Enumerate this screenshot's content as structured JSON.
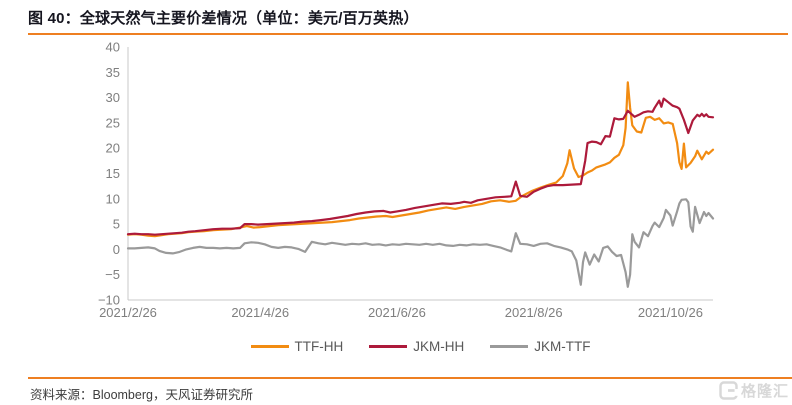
{
  "header": {
    "title": "图 40：全球天然气主要价差情况（单位：美元/百万英热）"
  },
  "footer": {
    "source": "资料来源：Bloomberg，天风证券研究所",
    "watermark": "格隆汇"
  },
  "colors": {
    "accent_orange": "#ee7f21",
    "title_text": "#15151f",
    "axis_text": "#7f7f7f",
    "axis_line": "#c8c8c8",
    "footer_text": "#3d3d3d",
    "watermark_gray": "#d8d8d8",
    "legend_text": "#595959"
  },
  "chart_data": {
    "type": "line",
    "title": "全球天然气主要价差情况",
    "unit": "美元/百万英热",
    "grid": false,
    "legend_position": "bottom",
    "y_axis": {
      "min": -10,
      "max": 40,
      "step": 5,
      "tick_labels": [
        "40",
        "35",
        "30",
        "25",
        "20",
        "15",
        "10",
        "5",
        "0",
        "−5",
        "−10"
      ]
    },
    "x_axis": {
      "range_days": [
        0,
        261
      ],
      "tick_days": [
        0,
        59,
        120,
        181,
        242
      ],
      "tick_labels": [
        "2021/2/26",
        "2021/4/26",
        "2021/6/26",
        "2021/8/26",
        "2021/10/26"
      ]
    },
    "series": [
      {
        "name": "TTF-HH",
        "color": "#f28c12",
        "points": [
          [
            0,
            2.9
          ],
          [
            3,
            3.0
          ],
          [
            6,
            2.9
          ],
          [
            9,
            2.7
          ],
          [
            12,
            2.6
          ],
          [
            15,
            2.8
          ],
          [
            18,
            3.0
          ],
          [
            21,
            3.1
          ],
          [
            24,
            3.2
          ],
          [
            27,
            3.4
          ],
          [
            30,
            3.5
          ],
          [
            34,
            3.6
          ],
          [
            38,
            3.8
          ],
          [
            42,
            3.9
          ],
          [
            46,
            4.0
          ],
          [
            50,
            4.3
          ],
          [
            53,
            4.6
          ],
          [
            56,
            4.3
          ],
          [
            59,
            4.4
          ],
          [
            63,
            4.6
          ],
          [
            67,
            4.8
          ],
          [
            71,
            4.9
          ],
          [
            75,
            5.0
          ],
          [
            79,
            5.1
          ],
          [
            83,
            5.2
          ],
          [
            87,
            5.3
          ],
          [
            91,
            5.4
          ],
          [
            95,
            5.6
          ],
          [
            99,
            5.8
          ],
          [
            103,
            6.1
          ],
          [
            107,
            6.3
          ],
          [
            111,
            6.5
          ],
          [
            115,
            6.6
          ],
          [
            118,
            6.4
          ],
          [
            122,
            6.7
          ],
          [
            126,
            7.0
          ],
          [
            130,
            7.3
          ],
          [
            134,
            7.7
          ],
          [
            138,
            8.0
          ],
          [
            142,
            8.3
          ],
          [
            146,
            8.0
          ],
          [
            150,
            8.4
          ],
          [
            154,
            8.7
          ],
          [
            158,
            9.0
          ],
          [
            162,
            9.5
          ],
          [
            166,
            9.7
          ],
          [
            170,
            9.4
          ],
          [
            173,
            9.6
          ],
          [
            176,
            10.6
          ],
          [
            180,
            11.5
          ],
          [
            184,
            12.2
          ],
          [
            188,
            12.8
          ],
          [
            191,
            13.2
          ],
          [
            194,
            14.5
          ],
          [
            196,
            17.0
          ],
          [
            197,
            19.6
          ],
          [
            199,
            16.0
          ],
          [
            201,
            14.3
          ],
          [
            203,
            14.6
          ],
          [
            205,
            15.2
          ],
          [
            207,
            15.6
          ],
          [
            209,
            16.2
          ],
          [
            211,
            16.5
          ],
          [
            213,
            16.8
          ],
          [
            215,
            17.2
          ],
          [
            217,
            18.1
          ],
          [
            219,
            18.7
          ],
          [
            221,
            20.6
          ],
          [
            222,
            24.0
          ],
          [
            223,
            33.0
          ],
          [
            224,
            28.0
          ],
          [
            225,
            24.5
          ],
          [
            227,
            23.3
          ],
          [
            229,
            23.1
          ],
          [
            231,
            26.0
          ],
          [
            233,
            26.2
          ],
          [
            235,
            25.6
          ],
          [
            237,
            25.9
          ],
          [
            239,
            24.9
          ],
          [
            241,
            25.1
          ],
          [
            243,
            24.8
          ],
          [
            245,
            21.0
          ],
          [
            246,
            17.2
          ],
          [
            247,
            15.9
          ],
          [
            248,
            20.9
          ],
          [
            249,
            16.2
          ],
          [
            251,
            17.1
          ],
          [
            253,
            18.4
          ],
          [
            254,
            19.5
          ],
          [
            256,
            17.8
          ],
          [
            258,
            19.3
          ],
          [
            259,
            18.9
          ],
          [
            261,
            19.7
          ]
        ]
      },
      {
        "name": "JKM-HH",
        "color": "#ad1a3b",
        "points": [
          [
            0,
            3.0
          ],
          [
            3,
            3.1
          ],
          [
            6,
            3.0
          ],
          [
            9,
            3.0
          ],
          [
            12,
            2.9
          ],
          [
            15,
            3.0
          ],
          [
            18,
            3.1
          ],
          [
            21,
            3.2
          ],
          [
            24,
            3.3
          ],
          [
            27,
            3.5
          ],
          [
            30,
            3.6
          ],
          [
            34,
            3.8
          ],
          [
            38,
            4.0
          ],
          [
            42,
            4.1
          ],
          [
            46,
            4.1
          ],
          [
            50,
            4.2
          ],
          [
            52,
            5.0
          ],
          [
            55,
            5.0
          ],
          [
            58,
            4.9
          ],
          [
            62,
            5.0
          ],
          [
            66,
            5.1
          ],
          [
            70,
            5.2
          ],
          [
            74,
            5.3
          ],
          [
            78,
            5.5
          ],
          [
            82,
            5.6
          ],
          [
            86,
            5.8
          ],
          [
            90,
            6.0
          ],
          [
            94,
            6.3
          ],
          [
            98,
            6.6
          ],
          [
            102,
            7.0
          ],
          [
            106,
            7.3
          ],
          [
            110,
            7.5
          ],
          [
            114,
            7.6
          ],
          [
            117,
            7.3
          ],
          [
            120,
            7.5
          ],
          [
            124,
            7.8
          ],
          [
            128,
            8.2
          ],
          [
            132,
            8.5
          ],
          [
            136,
            8.8
          ],
          [
            140,
            9.1
          ],
          [
            144,
            9.0
          ],
          [
            148,
            9.2
          ],
          [
            150,
            9.4
          ],
          [
            153,
            9.2
          ],
          [
            156,
            9.7
          ],
          [
            160,
            10.0
          ],
          [
            164,
            10.3
          ],
          [
            168,
            10.4
          ],
          [
            171,
            10.5
          ],
          [
            173,
            13.4
          ],
          [
            175,
            10.6
          ],
          [
            178,
            10.4
          ],
          [
            181,
            11.4
          ],
          [
            184,
            12.0
          ],
          [
            187,
            12.5
          ],
          [
            190,
            12.7
          ],
          [
            194,
            12.7
          ],
          [
            198,
            12.8
          ],
          [
            202,
            12.9
          ],
          [
            204,
            17.5
          ],
          [
            205,
            21.0
          ],
          [
            207,
            21.3
          ],
          [
            209,
            21.2
          ],
          [
            211,
            20.8
          ],
          [
            213,
            22.4
          ],
          [
            215,
            22.3
          ],
          [
            217,
            25.9
          ],
          [
            219,
            25.7
          ],
          [
            221,
            25.8
          ],
          [
            223,
            27.4
          ],
          [
            225,
            26.6
          ],
          [
            226,
            26.2
          ],
          [
            228,
            26.6
          ],
          [
            230,
            27.1
          ],
          [
            232,
            27.3
          ],
          [
            234,
            27.2
          ],
          [
            235,
            28.0
          ],
          [
            237,
            29.4
          ],
          [
            238,
            28.2
          ],
          [
            239,
            29.8
          ],
          [
            241,
            29.1
          ],
          [
            243,
            28.4
          ],
          [
            245,
            28.1
          ],
          [
            246,
            27.8
          ],
          [
            248,
            25.6
          ],
          [
            250,
            23.0
          ],
          [
            252,
            25.5
          ],
          [
            254,
            26.6
          ],
          [
            255,
            26.3
          ],
          [
            256,
            26.8
          ],
          [
            257,
            26.3
          ],
          [
            258,
            26.7
          ],
          [
            259,
            26.2
          ],
          [
            261,
            26.1
          ]
        ]
      },
      {
        "name": "JKM-TTF",
        "color": "#9a9a9a",
        "points": [
          [
            0,
            0.2
          ],
          [
            3,
            0.2
          ],
          [
            6,
            0.3
          ],
          [
            9,
            0.4
          ],
          [
            12,
            0.2
          ],
          [
            14,
            -0.3
          ],
          [
            17,
            -0.7
          ],
          [
            20,
            -0.8
          ],
          [
            23,
            -0.5
          ],
          [
            26,
            0.0
          ],
          [
            29,
            0.3
          ],
          [
            32,
            0.5
          ],
          [
            35,
            0.3
          ],
          [
            38,
            0.3
          ],
          [
            41,
            0.2
          ],
          [
            44,
            0.3
          ],
          [
            47,
            0.2
          ],
          [
            50,
            0.3
          ],
          [
            52,
            1.2
          ],
          [
            55,
            1.4
          ],
          [
            58,
            1.3
          ],
          [
            61,
            1.0
          ],
          [
            64,
            0.5
          ],
          [
            67,
            0.3
          ],
          [
            70,
            0.5
          ],
          [
            73,
            0.4
          ],
          [
            76,
            0.1
          ],
          [
            79,
            -0.5
          ],
          [
            82,
            1.5
          ],
          [
            85,
            1.2
          ],
          [
            88,
            1.0
          ],
          [
            91,
            1.3
          ],
          [
            94,
            1.1
          ],
          [
            97,
            0.9
          ],
          [
            100,
            1.1
          ],
          [
            103,
            1.0
          ],
          [
            106,
            1.2
          ],
          [
            109,
            0.9
          ],
          [
            112,
            1.0
          ],
          [
            115,
            0.8
          ],
          [
            118,
            1.0
          ],
          [
            121,
            0.9
          ],
          [
            124,
            1.1
          ],
          [
            127,
            1.0
          ],
          [
            130,
            0.9
          ],
          [
            133,
            1.1
          ],
          [
            136,
            0.9
          ],
          [
            139,
            1.1
          ],
          [
            142,
            0.8
          ],
          [
            145,
            0.7
          ],
          [
            148,
            0.9
          ],
          [
            151,
            0.8
          ],
          [
            154,
            1.0
          ],
          [
            157,
            0.9
          ],
          [
            160,
            1.0
          ],
          [
            163,
            0.7
          ],
          [
            166,
            0.4
          ],
          [
            169,
            -0.1
          ],
          [
            171,
            -0.4
          ],
          [
            173,
            3.2
          ],
          [
            175,
            1.1
          ],
          [
            178,
            1.0
          ],
          [
            181,
            0.7
          ],
          [
            184,
            1.1
          ],
          [
            187,
            1.2
          ],
          [
            190,
            0.7
          ],
          [
            193,
            0.4
          ],
          [
            196,
            0.0
          ],
          [
            198,
            -0.4
          ],
          [
            200,
            -2.2
          ],
          [
            202,
            -7.0
          ],
          [
            203,
            -2.5
          ],
          [
            204,
            -0.6
          ],
          [
            206,
            -3.0
          ],
          [
            208,
            -1.0
          ],
          [
            210,
            -2.4
          ],
          [
            212,
            0.3
          ],
          [
            214,
            0.6
          ],
          [
            216,
            -0.5
          ],
          [
            218,
            -1.3
          ],
          [
            220,
            -1.1
          ],
          [
            222,
            -4.5
          ],
          [
            223,
            -7.4
          ],
          [
            224,
            -5.0
          ],
          [
            225,
            3.0
          ],
          [
            226,
            1.5
          ],
          [
            228,
            0.4
          ],
          [
            230,
            3.4
          ],
          [
            232,
            2.6
          ],
          [
            234,
            4.6
          ],
          [
            235,
            5.3
          ],
          [
            237,
            4.4
          ],
          [
            239,
            6.2
          ],
          [
            240,
            7.8
          ],
          [
            242,
            6.7
          ],
          [
            243,
            4.7
          ],
          [
            245,
            7.5
          ],
          [
            246,
            9.1
          ],
          [
            247,
            9.8
          ],
          [
            249,
            9.9
          ],
          [
            250,
            9.3
          ],
          [
            251,
            4.5
          ],
          [
            252,
            3.5
          ],
          [
            253,
            8.4
          ],
          [
            255,
            5.2
          ],
          [
            257,
            7.4
          ],
          [
            258,
            6.6
          ],
          [
            259,
            7.2
          ],
          [
            261,
            6.1
          ]
        ]
      }
    ]
  }
}
